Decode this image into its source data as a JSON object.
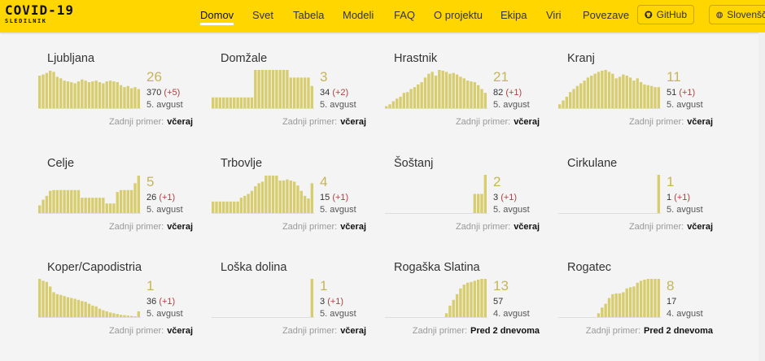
{
  "header": {
    "logo_title": "COVID-19",
    "logo_subtitle": "SLEDILNIK",
    "nav": [
      "Domov",
      "Svet",
      "Tabela",
      "Modeli",
      "FAQ",
      "O projektu",
      "Ekipa",
      "Viri",
      "Povezave"
    ],
    "active_nav": "Domov",
    "github_label": "GitHub",
    "language_label": "Slovenšč"
  },
  "colors": {
    "topbar": "#ffd600",
    "bar": "#d7cc6e",
    "bar_edge": "#c8b840",
    "big_number": "#c5b55a",
    "delta": "#b04040"
  },
  "last_case_label": "Zadnji primer:",
  "municipalities": [
    {
      "name": "Ljubljana",
      "active": "26",
      "total": "370",
      "delta": "(+5)",
      "date": "5. avgust",
      "last_case": "včeraj",
      "bars": [
        0.85,
        0.88,
        0.92,
        0.98,
        0.95,
        0.82,
        0.78,
        0.72,
        0.7,
        0.68,
        0.65,
        0.7,
        0.75,
        0.72,
        0.68,
        0.7,
        0.72,
        0.68,
        0.65,
        0.7,
        0.72,
        0.7,
        0.68,
        0.6,
        0.55,
        0.58,
        0.52,
        0.55,
        0.5
      ]
    },
    {
      "name": "Domžale",
      "active": "3",
      "total": "34",
      "delta": "(+2)",
      "date": "5. avgust",
      "last_case": "včeraj",
      "bars": [
        0.28,
        0.28,
        0.28,
        0.28,
        0.28,
        0.28,
        0.28,
        0.28,
        0.28,
        0.28,
        0.28,
        0.28,
        1.0,
        1.0,
        1.0,
        1.0,
        1.0,
        1.0,
        1.0,
        1.0,
        1.0,
        1.0,
        0.8,
        0.8,
        0.8,
        0.8,
        0.8,
        0.8,
        0.58
      ]
    },
    {
      "name": "Hrastnik",
      "active": "21",
      "total": "82",
      "delta": "(+1)",
      "date": "5. avgust",
      "last_case": "včeraj",
      "bars": [
        0.05,
        0.1,
        0.18,
        0.25,
        0.3,
        0.4,
        0.42,
        0.5,
        0.55,
        0.62,
        0.68,
        0.8,
        0.9,
        0.95,
        0.85,
        1.0,
        0.98,
        0.95,
        0.9,
        0.92,
        0.88,
        0.82,
        0.78,
        0.72,
        0.7,
        0.68,
        0.6,
        0.5,
        0.4
      ]
    },
    {
      "name": "Kranj",
      "active": "11",
      "total": "51",
      "delta": "(+1)",
      "date": "5. avgust",
      "last_case": "včeraj",
      "bars": [
        0.1,
        0.2,
        0.3,
        0.42,
        0.5,
        0.58,
        0.65,
        0.72,
        0.8,
        0.85,
        0.9,
        0.95,
        0.98,
        1.0,
        0.95,
        0.9,
        0.78,
        0.82,
        0.88,
        0.85,
        0.8,
        0.72,
        0.78,
        0.68,
        0.62,
        0.6,
        0.58,
        0.55,
        0.55
      ]
    },
    {
      "name": "Celje",
      "active": "5",
      "total": "26",
      "delta": "(+1)",
      "date": "5. avgust",
      "last_case": "včeraj",
      "bars": [
        0.2,
        0.35,
        0.45,
        0.58,
        0.6,
        0.6,
        0.6,
        0.6,
        0.6,
        0.6,
        0.6,
        0.6,
        0.4,
        0.4,
        0.4,
        0.4,
        0.4,
        0.4,
        0.4,
        0.25,
        0.25,
        0.25,
        0.55,
        0.6,
        0.6,
        0.6,
        0.6,
        0.78,
        0.98
      ]
    },
    {
      "name": "Trbovlje",
      "active": "4",
      "total": "15",
      "delta": "(+1)",
      "date": "5. avgust",
      "last_case": "včeraj",
      "bars": [
        0.3,
        0.3,
        0.3,
        0.3,
        0.3,
        0.3,
        0.3,
        0.3,
        0.4,
        0.45,
        0.5,
        0.58,
        0.7,
        0.78,
        0.82,
        0.98,
        0.98,
        0.98,
        0.98,
        0.85,
        0.85,
        0.88,
        0.85,
        0.82,
        0.72,
        0.58,
        0.45,
        0.38,
        0.78
      ]
    },
    {
      "name": "Šoštanj",
      "active": "2",
      "total": "3",
      "delta": "(+1)",
      "date": "5. avgust",
      "last_case": "včeraj",
      "bars": [
        0,
        0,
        0,
        0,
        0,
        0,
        0,
        0,
        0,
        0,
        0,
        0,
        0,
        0,
        0,
        0,
        0,
        0,
        0,
        0,
        0,
        0,
        0,
        0,
        0,
        0.5,
        0.5,
        0.5,
        1.0
      ]
    },
    {
      "name": "Cirkulane",
      "active": "1",
      "total": "1",
      "delta": "(+1)",
      "date": "5. avgust",
      "last_case": "včeraj",
      "bars": [
        0,
        0,
        0,
        0,
        0,
        0,
        0,
        0,
        0,
        0,
        0,
        0,
        0,
        0,
        0,
        0,
        0,
        0,
        0,
        0,
        0,
        0,
        0,
        0,
        0,
        0,
        0,
        0,
        1.0
      ]
    },
    {
      "name": "Koper/Capodistria",
      "active": "1",
      "total": "36",
      "delta": "(+1)",
      "date": "5. avgust",
      "last_case": "včeraj",
      "bars": [
        1.0,
        0.95,
        0.92,
        0.8,
        0.65,
        0.6,
        0.58,
        0.55,
        0.52,
        0.5,
        0.48,
        0.45,
        0.42,
        0.4,
        0.35,
        0.3,
        0.28,
        0.22,
        0.18,
        0.15,
        0.12,
        0.1,
        0.08,
        0.06,
        0.05,
        0.04,
        0.03,
        0.02,
        0.15
      ]
    },
    {
      "name": "Loška dolina",
      "active": "1",
      "total": "3",
      "delta": "(+1)",
      "date": "5. avgust",
      "last_case": "včeraj",
      "bars": [
        0,
        0,
        0,
        0,
        0,
        0,
        0,
        0,
        0,
        0,
        0,
        0,
        0,
        0,
        0,
        0,
        0,
        0,
        0,
        0,
        0,
        0,
        0,
        0,
        0,
        0,
        0,
        0,
        1.0
      ]
    },
    {
      "name": "Rogaška Slatina",
      "active": "13",
      "total": "57",
      "delta": "",
      "date": "4. avgust",
      "last_case": "Pred 2 dnevoma",
      "bars": [
        0,
        0,
        0,
        0,
        0,
        0,
        0,
        0,
        0,
        0,
        0,
        0,
        0,
        0,
        0,
        0,
        0,
        0.1,
        0.3,
        0.45,
        0.6,
        0.75,
        0.85,
        0.9,
        0.92,
        0.95,
        0.98,
        1.0,
        1.0
      ]
    },
    {
      "name": "Rogatec",
      "active": "8",
      "total": "17",
      "delta": "",
      "date": "4. avgust",
      "last_case": "Pred 2 dnevoma",
      "bars": [
        0,
        0,
        0,
        0,
        0,
        0,
        0,
        0,
        0,
        0,
        0,
        0.1,
        0.25,
        0.35,
        0.5,
        0.6,
        0.62,
        0.62,
        0.65,
        0.75,
        0.78,
        0.8,
        0.9,
        0.95,
        0.98,
        1.0,
        1.0,
        1.0,
        1.0
      ]
    }
  ]
}
